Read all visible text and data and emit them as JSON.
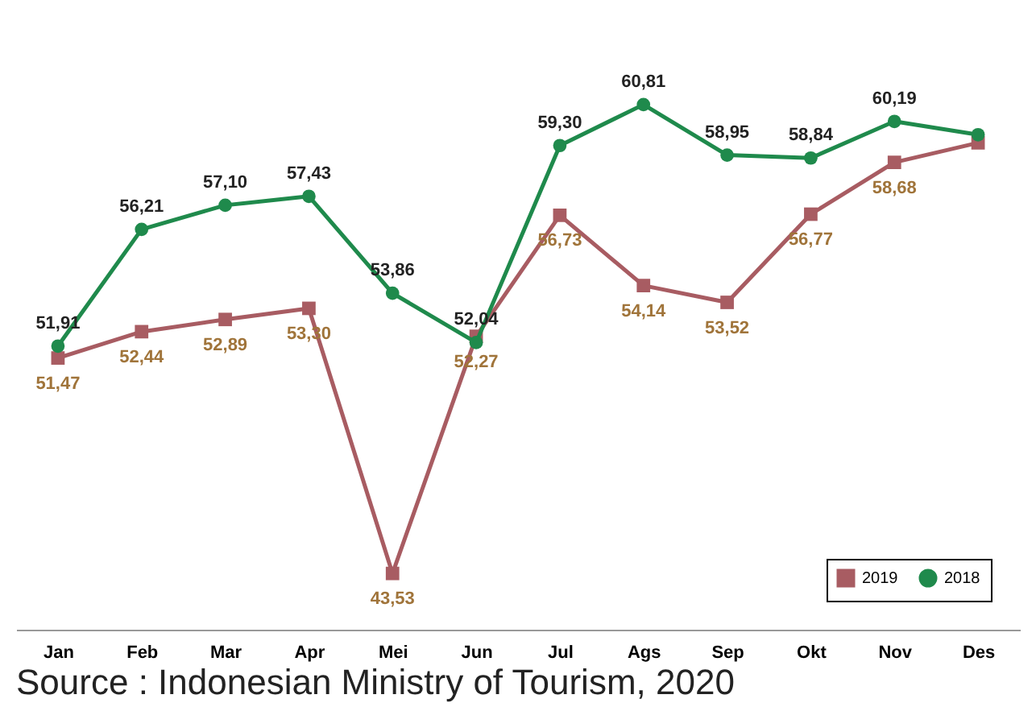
{
  "chart_data": {
    "type": "line",
    "categories": [
      "Jan",
      "Feb",
      "Mar",
      "Apr",
      "Mei",
      "Jun",
      "Jul",
      "Ags",
      "Sep",
      "Okt",
      "Nov",
      "Des"
    ],
    "series": [
      {
        "name": "2019",
        "color": "#a85c62",
        "marker": "square",
        "values": [
          51.47,
          52.44,
          52.89,
          53.3,
          43.53,
          52.27,
          56.73,
          54.14,
          53.52,
          56.77,
          58.68,
          59.4
        ],
        "value_labels": [
          "51,47",
          "52,44",
          "52,89",
          "53,30",
          "43,53",
          "52,27",
          "56,73",
          "54,14",
          "53,52",
          "56,77",
          "58,68",
          null
        ]
      },
      {
        "name": "2018",
        "color": "#1f8a4c",
        "marker": "circle",
        "values": [
          51.91,
          56.21,
          57.1,
          57.43,
          53.86,
          52.04,
          59.3,
          60.81,
          58.95,
          58.84,
          60.19,
          59.7
        ],
        "value_labels": [
          "51,91",
          "56,21",
          "57,10",
          "57,43",
          "53,86",
          "52,04",
          "59,30",
          "60,81",
          "58,95",
          "58,84",
          "60,19",
          null
        ]
      }
    ],
    "legend": "bottom right",
    "grid": false,
    "line_style": "solid",
    "annotations": [
      "Source : Indonesian Ministry of  Tourism, 2020"
    ]
  }
}
